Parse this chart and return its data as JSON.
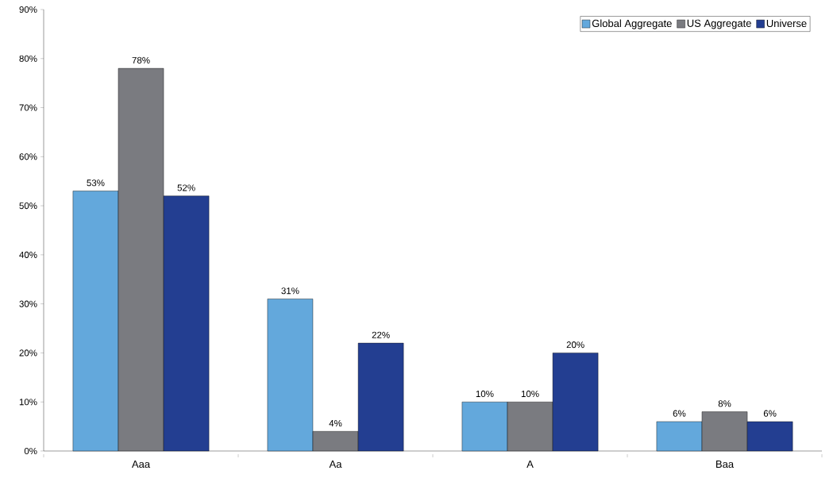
{
  "chart_data": {
    "type": "bar",
    "categories": [
      "Aaa",
      "Aa",
      "A",
      "Baa"
    ],
    "series": [
      {
        "name": "Global Aggregate",
        "color": "#63a8dc",
        "values": [
          53,
          31,
          10,
          6
        ],
        "value_labels": [
          "53%",
          "31%",
          "10%",
          "6%"
        ]
      },
      {
        "name": "US Aggregate",
        "color": "#7a7b80",
        "values": [
          78,
          4,
          10,
          8
        ],
        "value_labels": [
          "78%",
          "4%",
          "10%",
          "8%"
        ]
      },
      {
        "name": "Universe",
        "color": "#233e91",
        "values": [
          52,
          22,
          20,
          6
        ],
        "value_labels": [
          "52%",
          "22%",
          "20%",
          "6%"
        ]
      }
    ],
    "ylim": [
      0,
      90
    ],
    "yticks": [
      {
        "value": 0,
        "label": "0%"
      },
      {
        "value": 10,
        "label": "10%"
      },
      {
        "value": 20,
        "label": "20%"
      },
      {
        "value": 30,
        "label": "30%"
      },
      {
        "value": 40,
        "label": "40%"
      },
      {
        "value": 50,
        "label": "50%"
      },
      {
        "value": 60,
        "label": "60%"
      },
      {
        "value": 70,
        "label": "70%"
      },
      {
        "value": 80,
        "label": "80%"
      },
      {
        "value": 90,
        "label": "90%"
      }
    ],
    "grid": false,
    "legend": "top right"
  }
}
